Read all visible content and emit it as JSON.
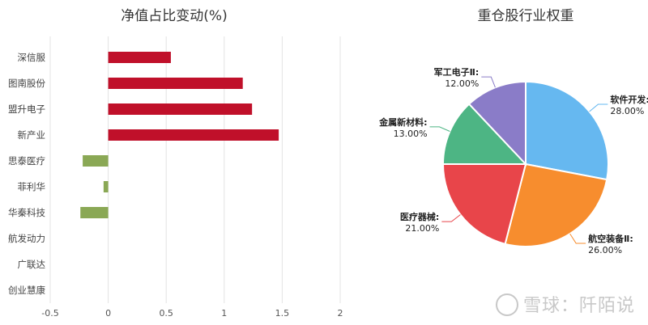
{
  "chart_data": [
    {
      "type": "bar",
      "orientation": "horizontal",
      "title": "净值占比变动(%)",
      "categories": [
        "深信服",
        "图南股份",
        "盟升电子",
        "新产业",
        "思泰医疗",
        "菲利华",
        "华秦科技",
        "航发动力",
        "广联达",
        "创业慧康"
      ],
      "values": [
        0.54,
        1.16,
        1.24,
        1.47,
        -0.22,
        -0.04,
        -0.24,
        0,
        0,
        0
      ],
      "xlim": [
        -0.5,
        2
      ],
      "xticks": [
        "-0.5",
        "0",
        "0.5",
        "1",
        "1.5",
        "2"
      ],
      "xtick_values": [
        -0.5,
        0,
        0.5,
        1,
        1.5,
        2
      ],
      "grid": true,
      "colors": {
        "positive": "#c0102a",
        "negative": "#8aa855",
        "grid": "#e3e3e3"
      }
    },
    {
      "type": "pie",
      "title": "重仓股行业权重",
      "slices": [
        {
          "name": "软件开发",
          "value": 28.0,
          "label": "28.00%",
          "color": "#66b8f0"
        },
        {
          "name": "航空装备Ⅱ",
          "value": 26.0,
          "label": "26.00%",
          "color": "#f78d2e"
        },
        {
          "name": "医疗器械",
          "value": 21.0,
          "label": "21.00%",
          "color": "#e8454a"
        },
        {
          "name": "金属新材料",
          "value": 13.0,
          "label": "13.00%",
          "color": "#4db584"
        },
        {
          "name": "军工电子Ⅱ",
          "value": 12.0,
          "label": "12.00%",
          "color": "#8a7cc8"
        }
      ]
    }
  ],
  "watermark": {
    "text": "雪球：阡陌说"
  }
}
